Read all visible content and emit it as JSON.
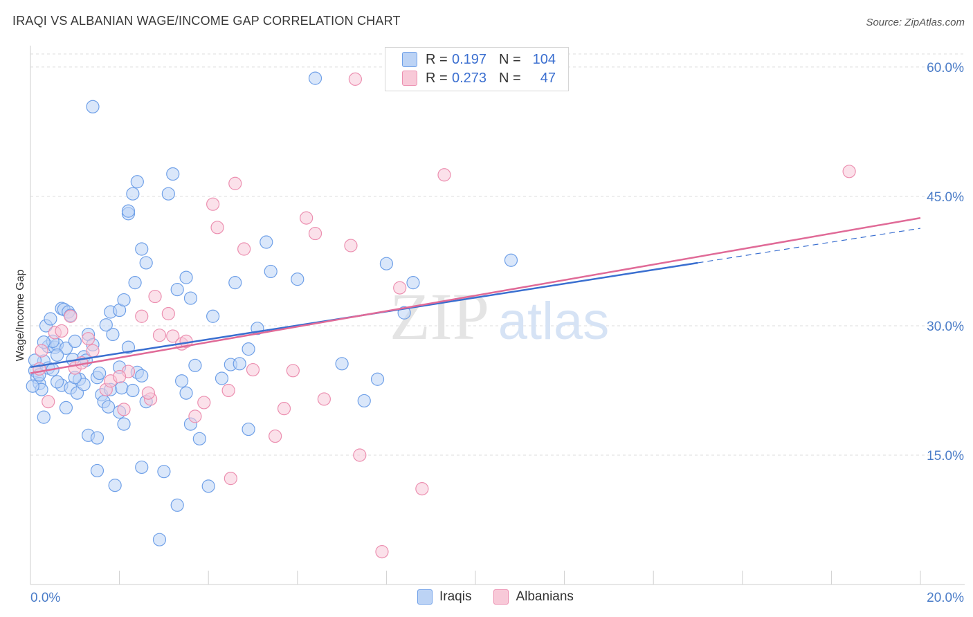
{
  "title": "IRAQI VS ALBANIAN WAGE/INCOME GAP CORRELATION CHART",
  "source": "Source: ZipAtlas.com",
  "watermark": {
    "zip": "ZIP",
    "atlas": "atlas"
  },
  "legend_top": [
    {
      "r_label": "R =",
      "r_value": "0.197",
      "n_label": "N =",
      "n_value": "104",
      "color": "#6fa0e8",
      "fill": "#bcd3f5"
    },
    {
      "r_label": "R =",
      "r_value": "0.273",
      "n_label": "N =",
      "n_value": "47",
      "color": "#ec8fb0",
      "fill": "#f8c9d8"
    }
  ],
  "legend_bottom": [
    {
      "label": "Iraqis",
      "fill": "#bcd3f5",
      "color": "#6fa0e8"
    },
    {
      "label": "Albanians",
      "fill": "#f8c9d8",
      "color": "#ec8fb0"
    }
  ],
  "chart_data": {
    "type": "scatter",
    "title": "IRAQI VS ALBANIAN WAGE/INCOME GAP CORRELATION CHART",
    "xlabel": "",
    "ylabel": "Wage/Income Gap",
    "xlim": [
      0,
      20
    ],
    "ylim": [
      0,
      62
    ],
    "x_ticks_labeled": [
      "0.0%",
      "20.0%"
    ],
    "y_ticks": [
      15,
      30,
      45,
      60
    ],
    "y_tick_labels": [
      "15.0%",
      "30.0%",
      "45.0%",
      "60.0%"
    ],
    "grid": true,
    "series": [
      {
        "name": "Iraqis",
        "color": "#6fa0e8",
        "fill": "#bcd3f5",
        "trend": {
          "x0": 0,
          "y0": 25.2,
          "x1": 15.0,
          "y1": 37.3,
          "dash_to_x": 20.0,
          "dash_to_y": 41.3,
          "color": "#3a6fd0"
        },
        "points": [
          [
            0.1,
            24.8
          ],
          [
            0.15,
            24.0
          ],
          [
            0.2,
            23.3
          ],
          [
            0.25,
            22.6
          ],
          [
            0.3,
            25.9
          ],
          [
            0.05,
            23.0
          ],
          [
            0.1,
            26.0
          ],
          [
            0.35,
            30.0
          ],
          [
            0.45,
            30.8
          ],
          [
            0.4,
            27.6
          ],
          [
            0.55,
            27.5
          ],
          [
            0.6,
            27.8
          ],
          [
            0.5,
            28.2
          ],
          [
            0.7,
            32.0
          ],
          [
            0.75,
            31.9
          ],
          [
            0.85,
            31.6
          ],
          [
            0.9,
            31.2
          ],
          [
            0.8,
            27.4
          ],
          [
            1.0,
            28.2
          ],
          [
            0.95,
            26.1
          ],
          [
            0.7,
            23.1
          ],
          [
            0.9,
            22.8
          ],
          [
            1.05,
            22.2
          ],
          [
            1.1,
            23.8
          ],
          [
            1.2,
            23.2
          ],
          [
            1.2,
            26.4
          ],
          [
            1.3,
            29.0
          ],
          [
            1.4,
            27.8
          ],
          [
            1.5,
            24.0
          ],
          [
            1.55,
            24.5
          ],
          [
            1.6,
            22.0
          ],
          [
            1.65,
            21.2
          ],
          [
            1.75,
            20.6
          ],
          [
            1.8,
            22.6
          ],
          [
            1.85,
            29.0
          ],
          [
            1.7,
            30.1
          ],
          [
            1.8,
            31.6
          ],
          [
            2.0,
            31.8
          ],
          [
            2.1,
            33.0
          ],
          [
            2.2,
            27.5
          ],
          [
            2.0,
            25.2
          ],
          [
            2.05,
            22.8
          ],
          [
            2.3,
            22.5
          ],
          [
            2.4,
            24.6
          ],
          [
            2.5,
            24.2
          ],
          [
            2.6,
            21.2
          ],
          [
            2.35,
            35.0
          ],
          [
            2.6,
            37.3
          ],
          [
            2.5,
            38.9
          ],
          [
            2.2,
            43.0
          ],
          [
            2.3,
            45.3
          ],
          [
            2.4,
            46.7
          ],
          [
            3.2,
            47.6
          ],
          [
            3.1,
            45.3
          ],
          [
            2.2,
            43.3
          ],
          [
            1.4,
            55.4
          ],
          [
            6.4,
            58.7
          ],
          [
            3.5,
            35.6
          ],
          [
            3.3,
            34.2
          ],
          [
            3.6,
            33.2
          ],
          [
            4.1,
            31.1
          ],
          [
            3.4,
            23.6
          ],
          [
            3.5,
            22.2
          ],
          [
            3.7,
            25.4
          ],
          [
            3.6,
            18.6
          ],
          [
            3.8,
            16.9
          ],
          [
            4.3,
            23.9
          ],
          [
            4.5,
            25.5
          ],
          [
            4.7,
            25.6
          ],
          [
            4.9,
            27.3
          ],
          [
            5.1,
            29.7
          ],
          [
            4.6,
            35.0
          ],
          [
            5.4,
            36.3
          ],
          [
            5.3,
            39.7
          ],
          [
            6.0,
            35.4
          ],
          [
            7.0,
            25.6
          ],
          [
            7.5,
            21.3
          ],
          [
            7.8,
            23.8
          ],
          [
            8.0,
            37.2
          ],
          [
            8.4,
            31.5
          ],
          [
            8.6,
            35.0
          ],
          [
            10.8,
            37.6
          ],
          [
            0.3,
            19.4
          ],
          [
            0.8,
            20.5
          ],
          [
            1.3,
            17.3
          ],
          [
            1.5,
            17.0
          ],
          [
            2.1,
            18.6
          ],
          [
            2.0,
            20.0
          ],
          [
            1.5,
            13.2
          ],
          [
            1.9,
            11.5
          ],
          [
            2.5,
            13.6
          ],
          [
            3.0,
            13.1
          ],
          [
            3.3,
            9.2
          ],
          [
            4.0,
            11.4
          ],
          [
            2.9,
            5.2
          ],
          [
            4.9,
            18.0
          ],
          [
            0.2,
            24.3
          ],
          [
            0.4,
            25.1
          ],
          [
            0.5,
            24.9
          ],
          [
            0.6,
            23.5
          ],
          [
            1.0,
            24.0
          ],
          [
            0.3,
            28.1
          ],
          [
            0.6,
            26.6
          ],
          [
            1.25,
            26.0
          ]
        ]
      },
      {
        "name": "Albanians",
        "color": "#ec8fb0",
        "fill": "#f8c9d8",
        "trend": {
          "x0": 0,
          "y0": 24.5,
          "x1": 20.0,
          "y1": 42.5,
          "color": "#e06a97"
        },
        "points": [
          [
            0.2,
            25.0
          ],
          [
            0.25,
            27.1
          ],
          [
            0.4,
            21.2
          ],
          [
            0.55,
            29.2
          ],
          [
            0.7,
            29.4
          ],
          [
            0.9,
            31.1
          ],
          [
            1.0,
            25.1
          ],
          [
            1.15,
            25.7
          ],
          [
            1.3,
            28.5
          ],
          [
            1.4,
            27.1
          ],
          [
            1.7,
            22.6
          ],
          [
            1.8,
            23.6
          ],
          [
            2.1,
            20.3
          ],
          [
            2.2,
            24.7
          ],
          [
            2.0,
            24.1
          ],
          [
            2.5,
            31.1
          ],
          [
            2.8,
            33.4
          ],
          [
            2.9,
            28.9
          ],
          [
            3.1,
            31.4
          ],
          [
            3.2,
            28.8
          ],
          [
            3.4,
            27.9
          ],
          [
            3.5,
            28.2
          ],
          [
            2.7,
            21.5
          ],
          [
            2.65,
            22.2
          ],
          [
            3.7,
            19.5
          ],
          [
            3.9,
            21.1
          ],
          [
            4.1,
            44.1
          ],
          [
            4.2,
            41.4
          ],
          [
            4.45,
            22.5
          ],
          [
            4.6,
            46.5
          ],
          [
            4.8,
            38.9
          ],
          [
            5.0,
            24.9
          ],
          [
            5.5,
            17.2
          ],
          [
            5.7,
            20.4
          ],
          [
            5.9,
            24.8
          ],
          [
            6.2,
            42.5
          ],
          [
            6.4,
            40.7
          ],
          [
            6.6,
            21.5
          ],
          [
            7.2,
            39.3
          ],
          [
            7.4,
            15.0
          ],
          [
            7.3,
            58.6
          ],
          [
            7.9,
            3.8
          ],
          [
            8.3,
            34.4
          ],
          [
            8.8,
            11.1
          ],
          [
            9.3,
            47.5
          ],
          [
            18.4,
            47.9
          ],
          [
            4.5,
            12.3
          ]
        ]
      }
    ]
  }
}
